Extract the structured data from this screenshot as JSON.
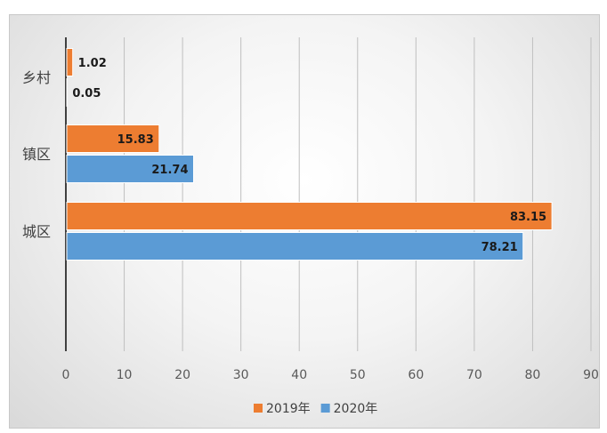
{
  "chart_data": {
    "type": "bar",
    "orientation": "horizontal",
    "categories": [
      "乡村",
      "镇区",
      "城区"
    ],
    "series": [
      {
        "name": "2019年",
        "values": [
          1.02,
          15.83,
          83.15
        ],
        "color": "#ED7D31"
      },
      {
        "name": "2020年",
        "values": [
          0.05,
          21.74,
          78.21
        ],
        "color": "#5B9BD5"
      }
    ],
    "xlim": [
      0,
      90
    ],
    "x_ticks": [
      0,
      10,
      20,
      30,
      40,
      50,
      60,
      70,
      80,
      90
    ],
    "grid": true,
    "legend_position": "bottom"
  }
}
